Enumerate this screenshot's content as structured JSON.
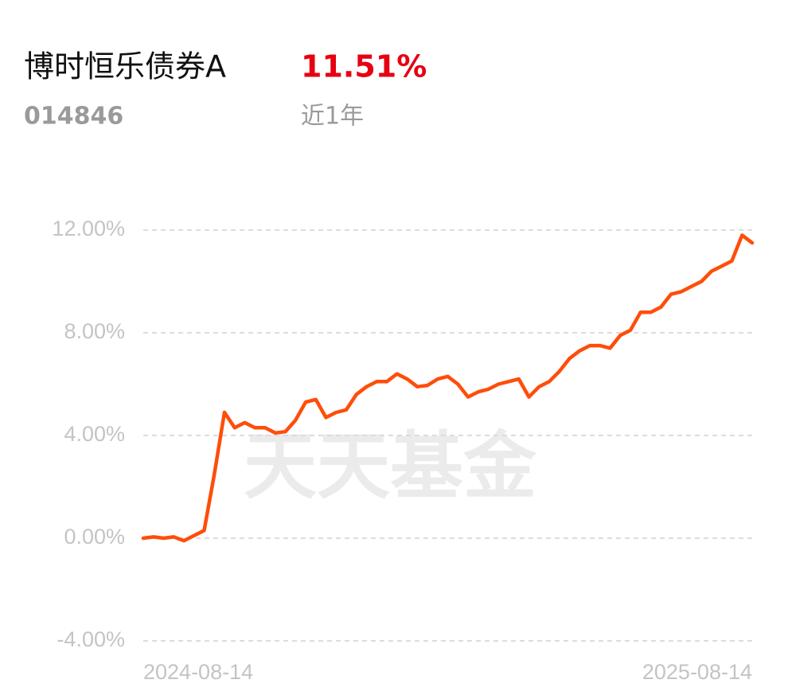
{
  "header": {
    "fund_name": "博时恒乐债券A",
    "return": "11.51%",
    "code": "014846",
    "period": "近1年"
  },
  "watermark": "天天基金",
  "chart_data": {
    "type": "line",
    "categories": [
      "2024-08-14",
      null,
      null,
      null,
      null,
      null,
      null,
      null,
      null,
      null,
      null,
      null,
      null,
      null,
      null,
      null,
      null,
      null,
      null,
      null,
      null,
      null,
      null,
      null,
      null,
      null,
      null,
      null,
      null,
      null,
      null,
      null,
      null,
      null,
      null,
      null,
      null,
      null,
      null,
      null,
      null,
      null,
      null,
      null,
      null,
      null,
      null,
      null,
      null,
      null,
      null,
      null,
      null,
      null,
      null,
      null,
      null,
      null,
      null,
      null,
      "2025-08-14"
    ],
    "series": [
      {
        "color": "#ff4d0a",
        "values": [
          0.0,
          0.05,
          0.0,
          0.05,
          -0.1,
          0.1,
          0.3,
          2.5,
          4.9,
          4.3,
          4.5,
          4.3,
          4.3,
          4.1,
          4.15,
          4.6,
          5.3,
          5.4,
          4.7,
          4.9,
          5.0,
          5.6,
          5.9,
          6.1,
          6.1,
          6.4,
          6.2,
          5.9,
          5.95,
          6.2,
          6.3,
          6.0,
          5.5,
          5.7,
          5.8,
          6.0,
          6.1,
          6.2,
          5.5,
          5.9,
          6.1,
          6.5,
          7.0,
          7.3,
          7.5,
          7.5,
          7.4,
          7.9,
          8.1,
          8.8,
          8.8,
          9.0,
          9.5,
          9.6,
          9.8,
          10.0,
          10.4,
          10.6,
          10.8,
          11.8,
          11.5
        ]
      }
    ],
    "ylim": [
      -4,
      12
    ],
    "yticks": [
      {
        "value": -4,
        "label": "-4.00%"
      },
      {
        "value": 0,
        "label": "0.00%"
      },
      {
        "value": 4,
        "label": "4.00%"
      },
      {
        "value": 8,
        "label": "8.00%"
      },
      {
        "value": 12,
        "label": "12.00%"
      }
    ],
    "grid": true
  }
}
